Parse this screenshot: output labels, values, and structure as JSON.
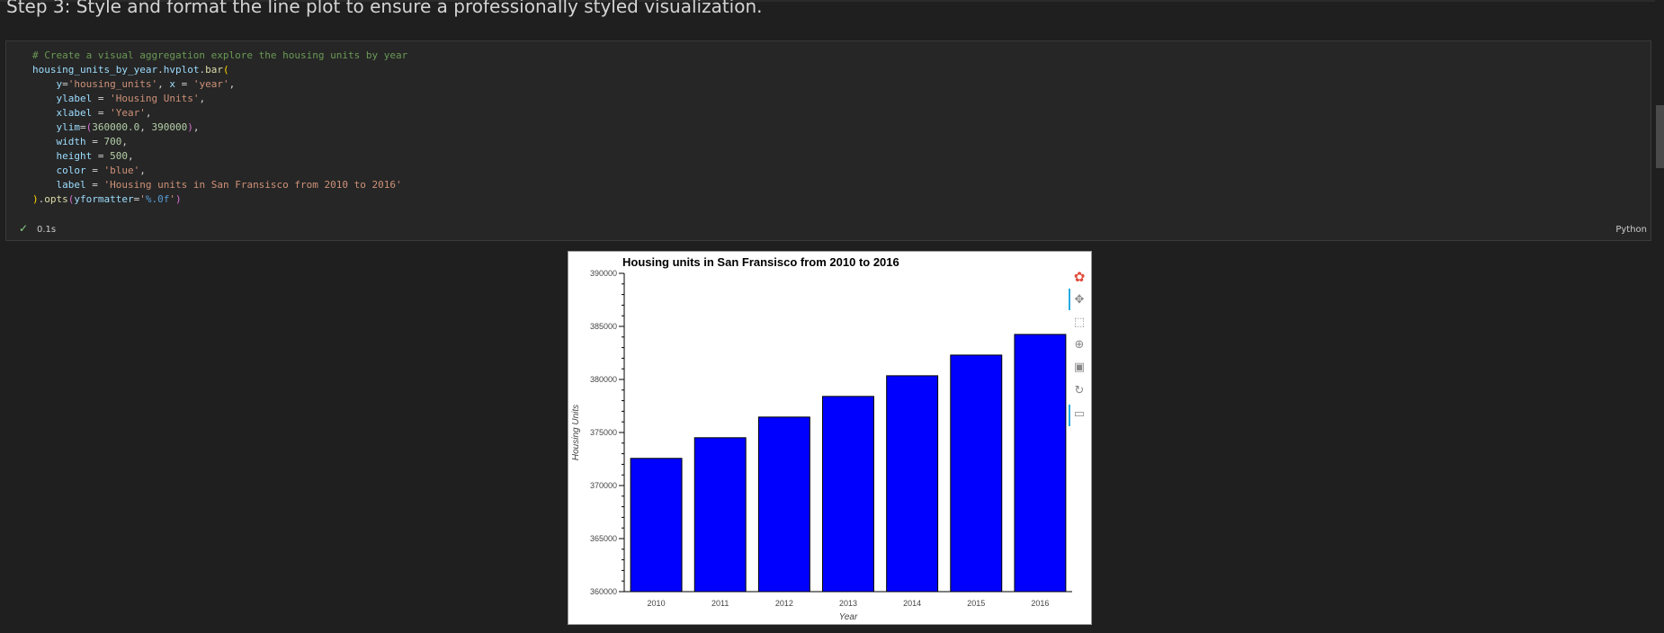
{
  "heading": "Step 3: Style and format the line plot to ensure a professionally styled visualization.",
  "code_cell": {
    "lines": [
      [
        {
          "t": "# Create a visual aggregation explore the housing units by year",
          "c": "comment"
        }
      ],
      [
        {
          "t": "housing_units_by_year",
          "c": "var"
        },
        {
          "t": ".",
          "c": "op"
        },
        {
          "t": "hvplot",
          "c": "var"
        },
        {
          "t": ".",
          "c": "op"
        },
        {
          "t": "bar",
          "c": "func"
        },
        {
          "t": "(",
          "c": "paren"
        }
      ],
      [
        {
          "t": "    ",
          "c": "op"
        },
        {
          "t": "y",
          "c": "var"
        },
        {
          "t": "=",
          "c": "op"
        },
        {
          "t": "'housing_units'",
          "c": "str"
        },
        {
          "t": ", ",
          "c": "op"
        },
        {
          "t": "x",
          "c": "var"
        },
        {
          "t": " = ",
          "c": "op"
        },
        {
          "t": "'year'",
          "c": "str"
        },
        {
          "t": ",",
          "c": "op"
        }
      ],
      [
        {
          "t": "    ",
          "c": "op"
        },
        {
          "t": "ylabel",
          "c": "var"
        },
        {
          "t": " = ",
          "c": "op"
        },
        {
          "t": "'Housing Units'",
          "c": "str"
        },
        {
          "t": ",",
          "c": "op"
        }
      ],
      [
        {
          "t": "    ",
          "c": "op"
        },
        {
          "t": "xlabel",
          "c": "var"
        },
        {
          "t": " = ",
          "c": "op"
        },
        {
          "t": "'Year'",
          "c": "str"
        },
        {
          "t": ",",
          "c": "op"
        }
      ],
      [
        {
          "t": "    ",
          "c": "op"
        },
        {
          "t": "ylim",
          "c": "var"
        },
        {
          "t": "=",
          "c": "op"
        },
        {
          "t": "(",
          "c": "paren2"
        },
        {
          "t": "360000.0",
          "c": "num"
        },
        {
          "t": ", ",
          "c": "op"
        },
        {
          "t": "390000",
          "c": "num"
        },
        {
          "t": ")",
          "c": "paren2"
        },
        {
          "t": ",",
          "c": "op"
        }
      ],
      [
        {
          "t": "    ",
          "c": "op"
        },
        {
          "t": "width",
          "c": "var"
        },
        {
          "t": " = ",
          "c": "op"
        },
        {
          "t": "700",
          "c": "num"
        },
        {
          "t": ",",
          "c": "op"
        }
      ],
      [
        {
          "t": "    ",
          "c": "op"
        },
        {
          "t": "height",
          "c": "var"
        },
        {
          "t": " = ",
          "c": "op"
        },
        {
          "t": "500",
          "c": "num"
        },
        {
          "t": ",",
          "c": "op"
        }
      ],
      [
        {
          "t": "    ",
          "c": "op"
        },
        {
          "t": "color",
          "c": "var"
        },
        {
          "t": " = ",
          "c": "op"
        },
        {
          "t": "'blue'",
          "c": "str"
        },
        {
          "t": ",",
          "c": "op"
        }
      ],
      [
        {
          "t": "    ",
          "c": "op"
        },
        {
          "t": "label",
          "c": "var"
        },
        {
          "t": " = ",
          "c": "op"
        },
        {
          "t": "'Housing units in San Fransisco from 2010 to 2016'",
          "c": "str"
        }
      ],
      [
        {
          "t": ")",
          "c": "paren"
        },
        {
          "t": ".",
          "c": "op"
        },
        {
          "t": "opts",
          "c": "func"
        },
        {
          "t": "(",
          "c": "paren2"
        },
        {
          "t": "yformatter",
          "c": "var"
        },
        {
          "t": "=",
          "c": "op"
        },
        {
          "t": "'",
          "c": "str"
        },
        {
          "t": "%.0f",
          "c": "fmt"
        },
        {
          "t": "'",
          "c": "str"
        },
        {
          "t": ")",
          "c": "paren2"
        }
      ]
    ],
    "exec_time": "0.1s",
    "language": "Python"
  },
  "colors": {
    "bar_fill": "#0000ff",
    "bar_stroke": "#000000",
    "accent": "#26aae1"
  },
  "toolbar": {
    "tools": [
      "bokeh-logo-icon",
      "pan-icon",
      "box-zoom-icon",
      "wheel-zoom-icon",
      "save-icon",
      "reset-icon",
      "hover-icon"
    ]
  },
  "chart_data": {
    "type": "bar",
    "title": "Housing units in San Fransisco from 2010 to 2016",
    "xlabel": "Year",
    "ylabel": "Housing Units",
    "categories": [
      "2010",
      "2011",
      "2012",
      "2013",
      "2014",
      "2015",
      "2016"
    ],
    "values": [
      372560,
      374507,
      376454,
      378401,
      380348,
      382295,
      384242
    ],
    "ylim": [
      360000,
      390000
    ],
    "yticks": [
      360000,
      365000,
      370000,
      375000,
      380000,
      385000,
      390000
    ],
    "ytick_labels": [
      "360000",
      "365000",
      "370000",
      "375000",
      "380000",
      "385000",
      "390000"
    ],
    "grid": false
  }
}
